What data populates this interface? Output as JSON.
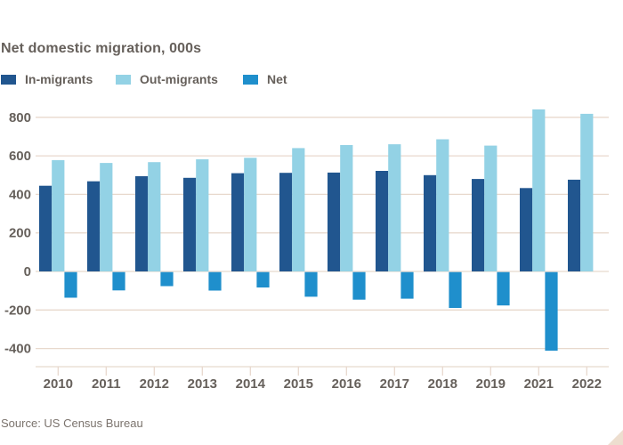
{
  "title": "Net domestic migration, 000s",
  "source": "Source: US Census Bureau",
  "colors": {
    "in_migrants": "#21568f",
    "out_migrants": "#93d2e5",
    "net": "#1f8fcc",
    "grid": "#e8d9cd",
    "text": "#66605b",
    "source_text": "#7b736d",
    "corner_triangle": "#eddecf",
    "background": "#ffffff"
  },
  "legend": {
    "items": [
      {
        "label": "In-migrants",
        "color": "#21568f"
      },
      {
        "label": "Out-migrants",
        "color": "#93d2e5"
      },
      {
        "label": "Net",
        "color": "#1f8fcc"
      }
    ]
  },
  "chart_data": {
    "type": "bar",
    "title": "Net domestic migration, 000s",
    "categories": [
      "2010",
      "2011",
      "2012",
      "2013",
      "2014",
      "2015",
      "2016",
      "2017",
      "2018",
      "2019",
      "2021",
      "2022"
    ],
    "series": [
      {
        "name": "In-migrants",
        "color": "#21568f",
        "values": [
          445,
          468,
          494,
          486,
          510,
          512,
          513,
          522,
          500,
          480,
          433,
          476
        ]
      },
      {
        "name": "Out-migrants",
        "color": "#93d2e5",
        "values": [
          578,
          563,
          567,
          582,
          590,
          640,
          656,
          660,
          686,
          653,
          841,
          818
        ]
      },
      {
        "name": "Net",
        "color": "#1f8fcc",
        "values": [
          -133,
          -95,
          -73,
          -96,
          -80,
          -128,
          -143,
          -138,
          -186,
          -173,
          -408,
          null
        ]
      }
    ],
    "xlabel": "",
    "ylabel": "",
    "ylim": [
      -400,
      800
    ],
    "yticks": [
      800,
      600,
      400,
      200,
      0,
      -200,
      -400
    ],
    "grid": true,
    "legend_position": "top-left",
    "x_axis_note": "2020 omitted between 2019 and 2021"
  }
}
